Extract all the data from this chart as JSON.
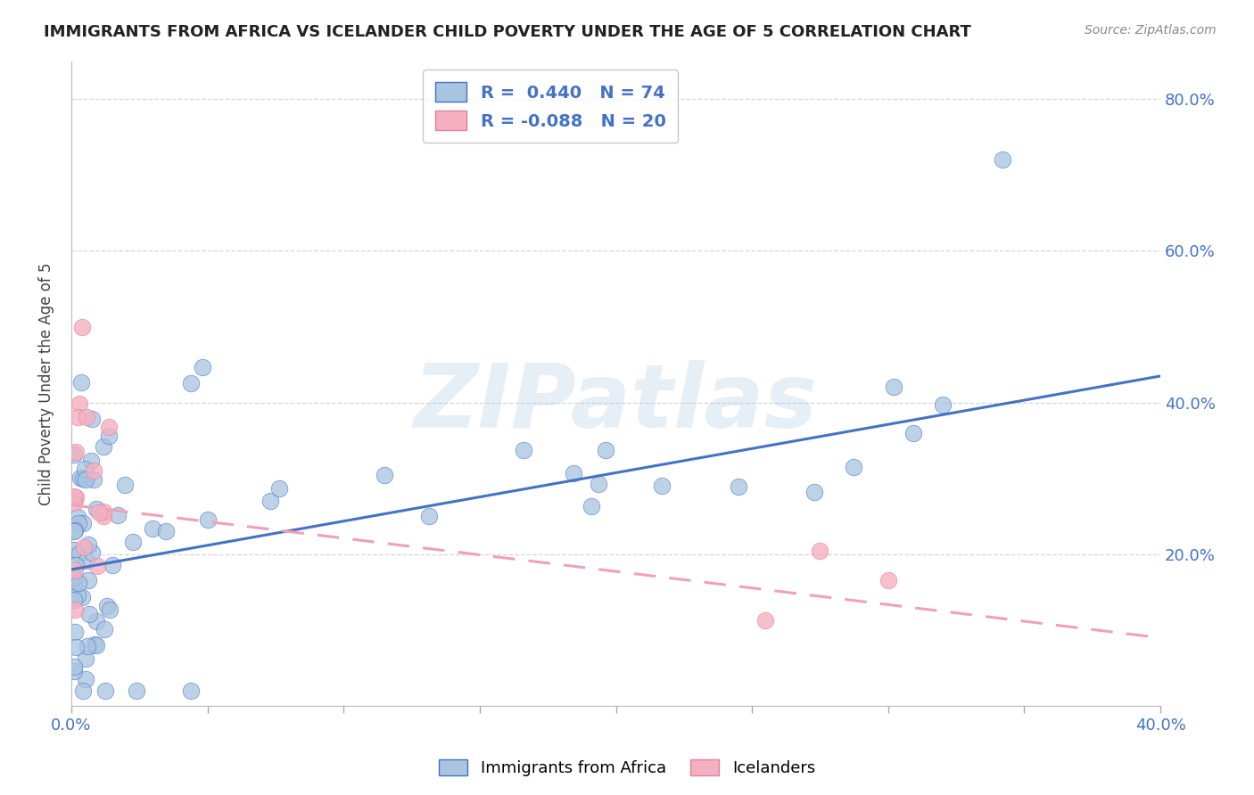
{
  "title": "IMMIGRANTS FROM AFRICA VS ICELANDER CHILD POVERTY UNDER THE AGE OF 5 CORRELATION CHART",
  "source": "Source: ZipAtlas.com",
  "ylabel": "Child Poverty Under the Age of 5",
  "yticks": [
    0.0,
    0.2,
    0.4,
    0.6,
    0.8
  ],
  "ytick_labels": [
    "",
    "20.0%",
    "40.0%",
    "60.0%",
    "80.0%"
  ],
  "xlim": [
    0.0,
    0.4
  ],
  "ylim": [
    0.0,
    0.85
  ],
  "R_africa": 0.44,
  "N_africa": 74,
  "R_iceland": -0.088,
  "N_iceland": 20,
  "color_africa": "#a8c4e0",
  "color_iceland": "#f4b0c0",
  "line_color_africa": "#4472c4",
  "line_color_iceland": "#f0a0b8",
  "legend_color_africa": "#a8c4e0",
  "legend_color_iceland": "#f4b0c0",
  "africa_trend_x0": 0.0,
  "africa_trend_y0": 0.18,
  "africa_trend_x1": 0.4,
  "africa_trend_y1": 0.435,
  "iceland_trend_x0": 0.0,
  "iceland_trend_y0": 0.265,
  "iceland_trend_x1": 0.4,
  "iceland_trend_y1": 0.09,
  "watermark": "ZIPatlas",
  "background_color": "#ffffff",
  "grid_color": "#cccccc"
}
